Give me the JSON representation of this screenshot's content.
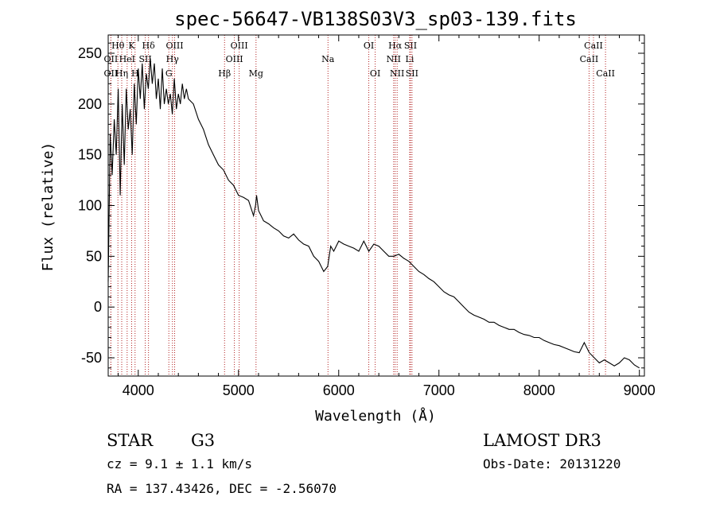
{
  "chart_data": {
    "type": "line",
    "title": "spec-56647-VB138S03V3_sp03-139.fits",
    "xlabel": "Wavelength (Å)",
    "ylabel": "Flux (relative)",
    "xlim": [
      3700,
      9050
    ],
    "ylim": [
      -68,
      268
    ],
    "xticks": [
      4000,
      5000,
      6000,
      7000,
      8000,
      9000
    ],
    "yticks": [
      -50,
      0,
      50,
      100,
      150,
      200,
      250
    ],
    "series": [
      {
        "name": "flux",
        "x": [
          3700,
          3720,
          3740,
          3760,
          3780,
          3800,
          3820,
          3840,
          3860,
          3880,
          3900,
          3920,
          3940,
          3960,
          3980,
          4000,
          4020,
          4040,
          4060,
          4080,
          4100,
          4120,
          4140,
          4160,
          4180,
          4200,
          4220,
          4240,
          4260,
          4280,
          4300,
          4320,
          4340,
          4360,
          4380,
          4400,
          4420,
          4440,
          4460,
          4480,
          4500,
          4550,
          4600,
          4650,
          4700,
          4750,
          4800,
          4850,
          4900,
          4950,
          5000,
          5050,
          5100,
          5150,
          5170,
          5180,
          5200,
          5250,
          5300,
          5350,
          5400,
          5450,
          5500,
          5550,
          5600,
          5650,
          5700,
          5750,
          5800,
          5850,
          5890,
          5920,
          5950,
          6000,
          6050,
          6100,
          6150,
          6200,
          6250,
          6300,
          6350,
          6400,
          6450,
          6500,
          6550,
          6600,
          6650,
          6700,
          6750,
          6800,
          6850,
          6900,
          6950,
          7000,
          7050,
          7100,
          7150,
          7200,
          7250,
          7300,
          7350,
          7400,
          7450,
          7500,
          7550,
          7600,
          7650,
          7700,
          7750,
          7800,
          7850,
          7900,
          7950,
          8000,
          8050,
          8100,
          8150,
          8200,
          8250,
          8300,
          8350,
          8400,
          8450,
          8500,
          8550,
          8600,
          8650,
          8700,
          8750,
          8800,
          8850,
          8900,
          8950,
          9000
        ],
        "values": [
          25,
          170,
          130,
          185,
          150,
          215,
          110,
          200,
          140,
          215,
          175,
          195,
          150,
          220,
          180,
          235,
          205,
          240,
          195,
          230,
          215,
          245,
          220,
          240,
          205,
          225,
          195,
          235,
          200,
          215,
          200,
          210,
          190,
          225,
          195,
          210,
          200,
          220,
          205,
          215,
          205,
          200,
          185,
          175,
          160,
          150,
          140,
          135,
          125,
          120,
          110,
          108,
          105,
          90,
          100,
          110,
          95,
          85,
          82,
          78,
          75,
          70,
          68,
          72,
          66,
          62,
          60,
          50,
          45,
          35,
          40,
          60,
          55,
          65,
          62,
          60,
          58,
          55,
          65,
          55,
          62,
          60,
          55,
          50,
          50,
          52,
          48,
          45,
          40,
          35,
          32,
          28,
          25,
          20,
          15,
          12,
          10,
          5,
          0,
          -5,
          -8,
          -10,
          -12,
          -15,
          -15,
          -18,
          -20,
          -22,
          -22,
          -25,
          -27,
          -28,
          -30,
          -30,
          -33,
          -35,
          -37,
          -38,
          -40,
          -42,
          -44,
          -45,
          -35,
          -45,
          -50,
          -55,
          -52,
          -55,
          -58,
          -55,
          -50,
          -52,
          -57,
          -60
        ]
      }
    ],
    "lines": [
      {
        "label": "Hθ",
        "x": 3797,
        "row": 1
      },
      {
        "label": "OII",
        "x": 3727,
        "row": 2
      },
      {
        "label": "OII",
        "x": 3727,
        "row": 3
      },
      {
        "label": "K",
        "x": 3934,
        "row": 1
      },
      {
        "label": "HeI",
        "x": 3889,
        "row": 2
      },
      {
        "label": "Hη",
        "x": 3835,
        "row": 3
      },
      {
        "label": "Hδ",
        "x": 4102,
        "row": 1
      },
      {
        "label": "SII",
        "x": 4070,
        "row": 2
      },
      {
        "label": "H",
        "x": 3968,
        "row": 3
      },
      {
        "label": "OIII",
        "x": 4363,
        "row": 1
      },
      {
        "label": "Hγ",
        "x": 4341,
        "row": 2
      },
      {
        "label": "G",
        "x": 4305,
        "row": 3
      },
      {
        "label": "OIII",
        "x": 5007,
        "row": 1
      },
      {
        "label": "OIII",
        "x": 4959,
        "row": 2
      },
      {
        "label": "Hβ",
        "x": 4861,
        "row": 3
      },
      {
        "label": "Mg",
        "x": 5175,
        "row": 3
      },
      {
        "label": "Na",
        "x": 5893,
        "row": 2
      },
      {
        "label": "OI",
        "x": 6300,
        "row": 1
      },
      {
        "label": "OI",
        "x": 6364,
        "row": 3
      },
      {
        "label": "Hα",
        "x": 6563,
        "row": 1
      },
      {
        "label": "NII",
        "x": 6548,
        "row": 2
      },
      {
        "label": "NII",
        "x": 6583,
        "row": 3
      },
      {
        "label": "SII",
        "x": 6716,
        "row": 1
      },
      {
        "label": "Li",
        "x": 6708,
        "row": 2
      },
      {
        "label": "SII",
        "x": 6731,
        "row": 3
      },
      {
        "label": "CaII",
        "x": 8542,
        "row": 1
      },
      {
        "label": "CaII",
        "x": 8498,
        "row": 2
      },
      {
        "label": "CaII",
        "x": 8662,
        "row": 3
      }
    ]
  },
  "info": {
    "object_type": "STAR",
    "subclass": "G3",
    "survey": "LAMOST DR3",
    "redshift": "cz = 9.1 ± 1.1 km/s",
    "obs_date": "Obs-Date: 20131220",
    "coords": "RA = 137.43426, DEC =  -2.56070"
  }
}
